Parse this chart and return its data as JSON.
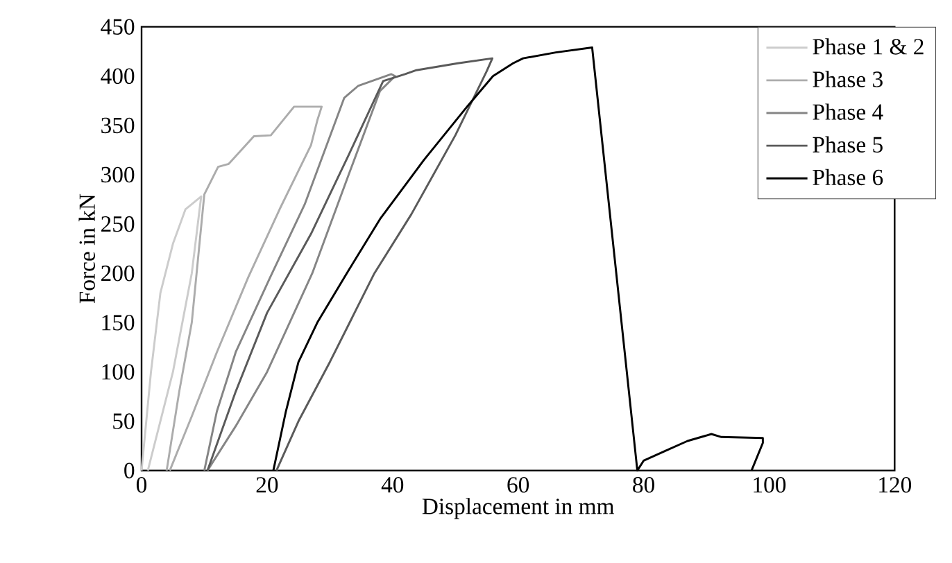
{
  "chart_data": {
    "type": "line",
    "xlabel": "Displacement in mm",
    "ylabel": "Force in kN",
    "xlim": [
      0,
      120
    ],
    "ylim": [
      0,
      450
    ],
    "xticks": [
      0,
      20,
      40,
      60,
      80,
      100,
      120
    ],
    "yticks": [
      0,
      50,
      100,
      150,
      200,
      250,
      300,
      350,
      400,
      450
    ],
    "grid": false,
    "legend": "top right",
    "series": [
      {
        "name": "Phase 1 & 2",
        "color": "#cccccc",
        "x": [
          0,
          1.5,
          3,
          4,
          5,
          7,
          9.5,
          8,
          5,
          1
        ],
        "values": [
          0,
          100,
          180,
          205,
          230,
          265,
          278,
          200,
          100,
          0
        ]
      },
      {
        "name": "Phase 3",
        "color": "#acacac",
        "x": [
          4,
          6,
          8,
          10,
          12.2,
          13.9,
          17.9,
          20.6,
          24.3,
          28.7,
          28,
          27,
          22,
          17,
          12,
          8,
          4.5
        ],
        "values": [
          0,
          80,
          150,
          280,
          308,
          311,
          339,
          340,
          369,
          369,
          355,
          330,
          265,
          196,
          120,
          55,
          0
        ]
      },
      {
        "name": "Phase 4",
        "color": "#858585",
        "x": [
          10,
          12,
          15,
          20.5,
          26,
          32.3,
          34.5,
          39.8,
          40.4,
          38,
          33,
          27.2,
          20,
          15,
          10.5
        ],
        "values": [
          0,
          60,
          120,
          196,
          270,
          378,
          390,
          402,
          400,
          385,
          300,
          200,
          100,
          45,
          0
        ]
      },
      {
        "name": "Phase 5",
        "color": "#5a5a5a",
        "x": [
          10.5,
          15,
          20,
          27,
          33,
          38.5,
          42,
          43.8,
          50.4,
          55.9,
          55,
          50,
          43,
          37.1,
          30,
          25,
          21.5
        ],
        "values": [
          0,
          80,
          160,
          240,
          320,
          395,
          402,
          406,
          413,
          418,
          405,
          340,
          260,
          200,
          110,
          50,
          0
        ]
      },
      {
        "name": "Phase 6",
        "color": "#000000",
        "x": [
          21,
          23,
          25,
          28,
          32.7,
          38,
          45,
          52,
          56,
          59.2,
          60.8,
          66,
          71.8,
          79,
          80,
          83.5,
          87,
          90.8,
          92.4,
          99,
          99,
          97.2
        ],
        "values": [
          0,
          60,
          110,
          150,
          200,
          255,
          315,
          370,
          400,
          413,
          418,
          424,
          429,
          0,
          10,
          20,
          30,
          37,
          34,
          33,
          28,
          0
        ]
      }
    ]
  }
}
